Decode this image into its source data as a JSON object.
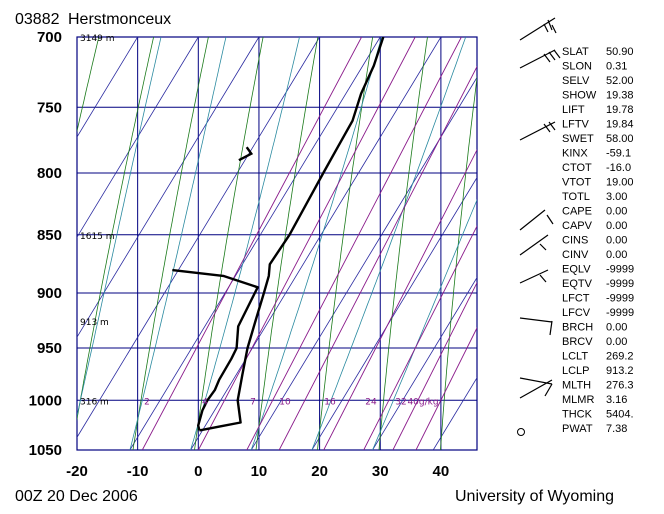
{
  "header": {
    "station_id": "03882",
    "station_name": "Herstmonceux"
  },
  "footer": {
    "time": "00Z 20 Dec 2006",
    "source": "University of Wyoming"
  },
  "chart_data": {
    "type": "skew-t",
    "pressure_ticks": [
      "700",
      "750",
      "800",
      "850",
      "900",
      "950",
      "1000",
      "1050"
    ],
    "temp_ticks": [
      "-20",
      "-10",
      "0",
      "10",
      "20",
      "30",
      "40"
    ],
    "height_labels": [
      {
        "p": 700,
        "text": "3149 m"
      },
      {
        "p": 850,
        "text": "1615 m"
      },
      {
        "p": 925,
        "text": "913 m"
      },
      {
        "p": 1000,
        "text": "316 m"
      }
    ],
    "mixing_ratio_labels": [
      "2",
      "4",
      "7",
      "10",
      "16",
      "24",
      "32",
      "40g/kg"
    ],
    "temperature": [
      [
        1030,
        -0.5
      ],
      [
        1026,
        2.5
      ],
      [
        1022,
        5.5
      ],
      [
        1000,
        2.8
      ],
      [
        975,
        1
      ],
      [
        950,
        -0.8
      ],
      [
        925,
        -2.2
      ],
      [
        900,
        -3.6
      ],
      [
        885,
        -4.5
      ],
      [
        875,
        -5.5
      ],
      [
        850,
        -5.2
      ],
      [
        825,
        -5.5
      ],
      [
        800,
        -5.8
      ],
      [
        780,
        -6.0
      ],
      [
        760,
        -6.2
      ],
      [
        740,
        -7.5
      ],
      [
        720,
        -8.2
      ],
      [
        700,
        -9.5
      ]
    ],
    "dewpoint": [
      [
        1030,
        -0.5
      ],
      [
        1025,
        -1.2
      ],
      [
        1010,
        -2
      ],
      [
        1000,
        -2.2
      ],
      [
        990,
        -2.0
      ],
      [
        980,
        -2.3
      ],
      [
        960,
        -2.4
      ],
      [
        950,
        -2.6
      ],
      [
        930,
        -4.5
      ],
      [
        905,
        -5.0
      ],
      [
        895,
        -5.2
      ],
      [
        885,
        -12
      ],
      [
        880,
        -21
      ]
    ],
    "dewpoint_upper": [
      [
        790,
        -21
      ],
      [
        785,
        -19.6
      ],
      [
        780,
        -21
      ]
    ],
    "colors": {
      "isotherm": "#2a2aa0",
      "grid": "#000080",
      "adiabat_dry": "#1a7a1a",
      "adiabat_moist": "#2a8aa0",
      "mixing": "#8a1a8a",
      "profile": "#000000"
    },
    "indices": [
      {
        "k": "SLAT",
        "v": "50.90"
      },
      {
        "k": "SLON",
        "v": "0.31"
      },
      {
        "k": "SELV",
        "v": "52.00"
      },
      {
        "k": "SHOW",
        "v": "19.38"
      },
      {
        "k": "LIFT",
        "v": "19.78"
      },
      {
        "k": "LFTV",
        "v": "19.84"
      },
      {
        "k": "SWET",
        "v": "58.00"
      },
      {
        "k": "KINX",
        "v": "-59.1"
      },
      {
        "k": "CTOT",
        "v": "-16.0"
      },
      {
        "k": "VTOT",
        "v": "19.00"
      },
      {
        "k": "TOTL",
        "v": "3.00"
      },
      {
        "k": "CAPE",
        "v": "0.00"
      },
      {
        "k": "CAPV",
        "v": "0.00"
      },
      {
        "k": "CINS",
        "v": "0.00"
      },
      {
        "k": "CINV",
        "v": "0.00"
      },
      {
        "k": "EQLV",
        "v": "-9999"
      },
      {
        "k": "EQTV",
        "v": "-9999"
      },
      {
        "k": "LFCT",
        "v": "-9999"
      },
      {
        "k": "LFCV",
        "v": "-9999"
      },
      {
        "k": "BRCH",
        "v": "0.00"
      },
      {
        "k": "BRCV",
        "v": "0.00"
      },
      {
        "k": "LCLT",
        "v": "269.2"
      },
      {
        "k": "LCLP",
        "v": "913.2"
      },
      {
        "k": "MLTH",
        "v": "276.3"
      },
      {
        "k": "MLMR",
        "v": "3.16"
      },
      {
        "k": "THCK",
        "v": "5404."
      },
      {
        "k": "PWAT",
        "v": "7.38"
      }
    ]
  }
}
